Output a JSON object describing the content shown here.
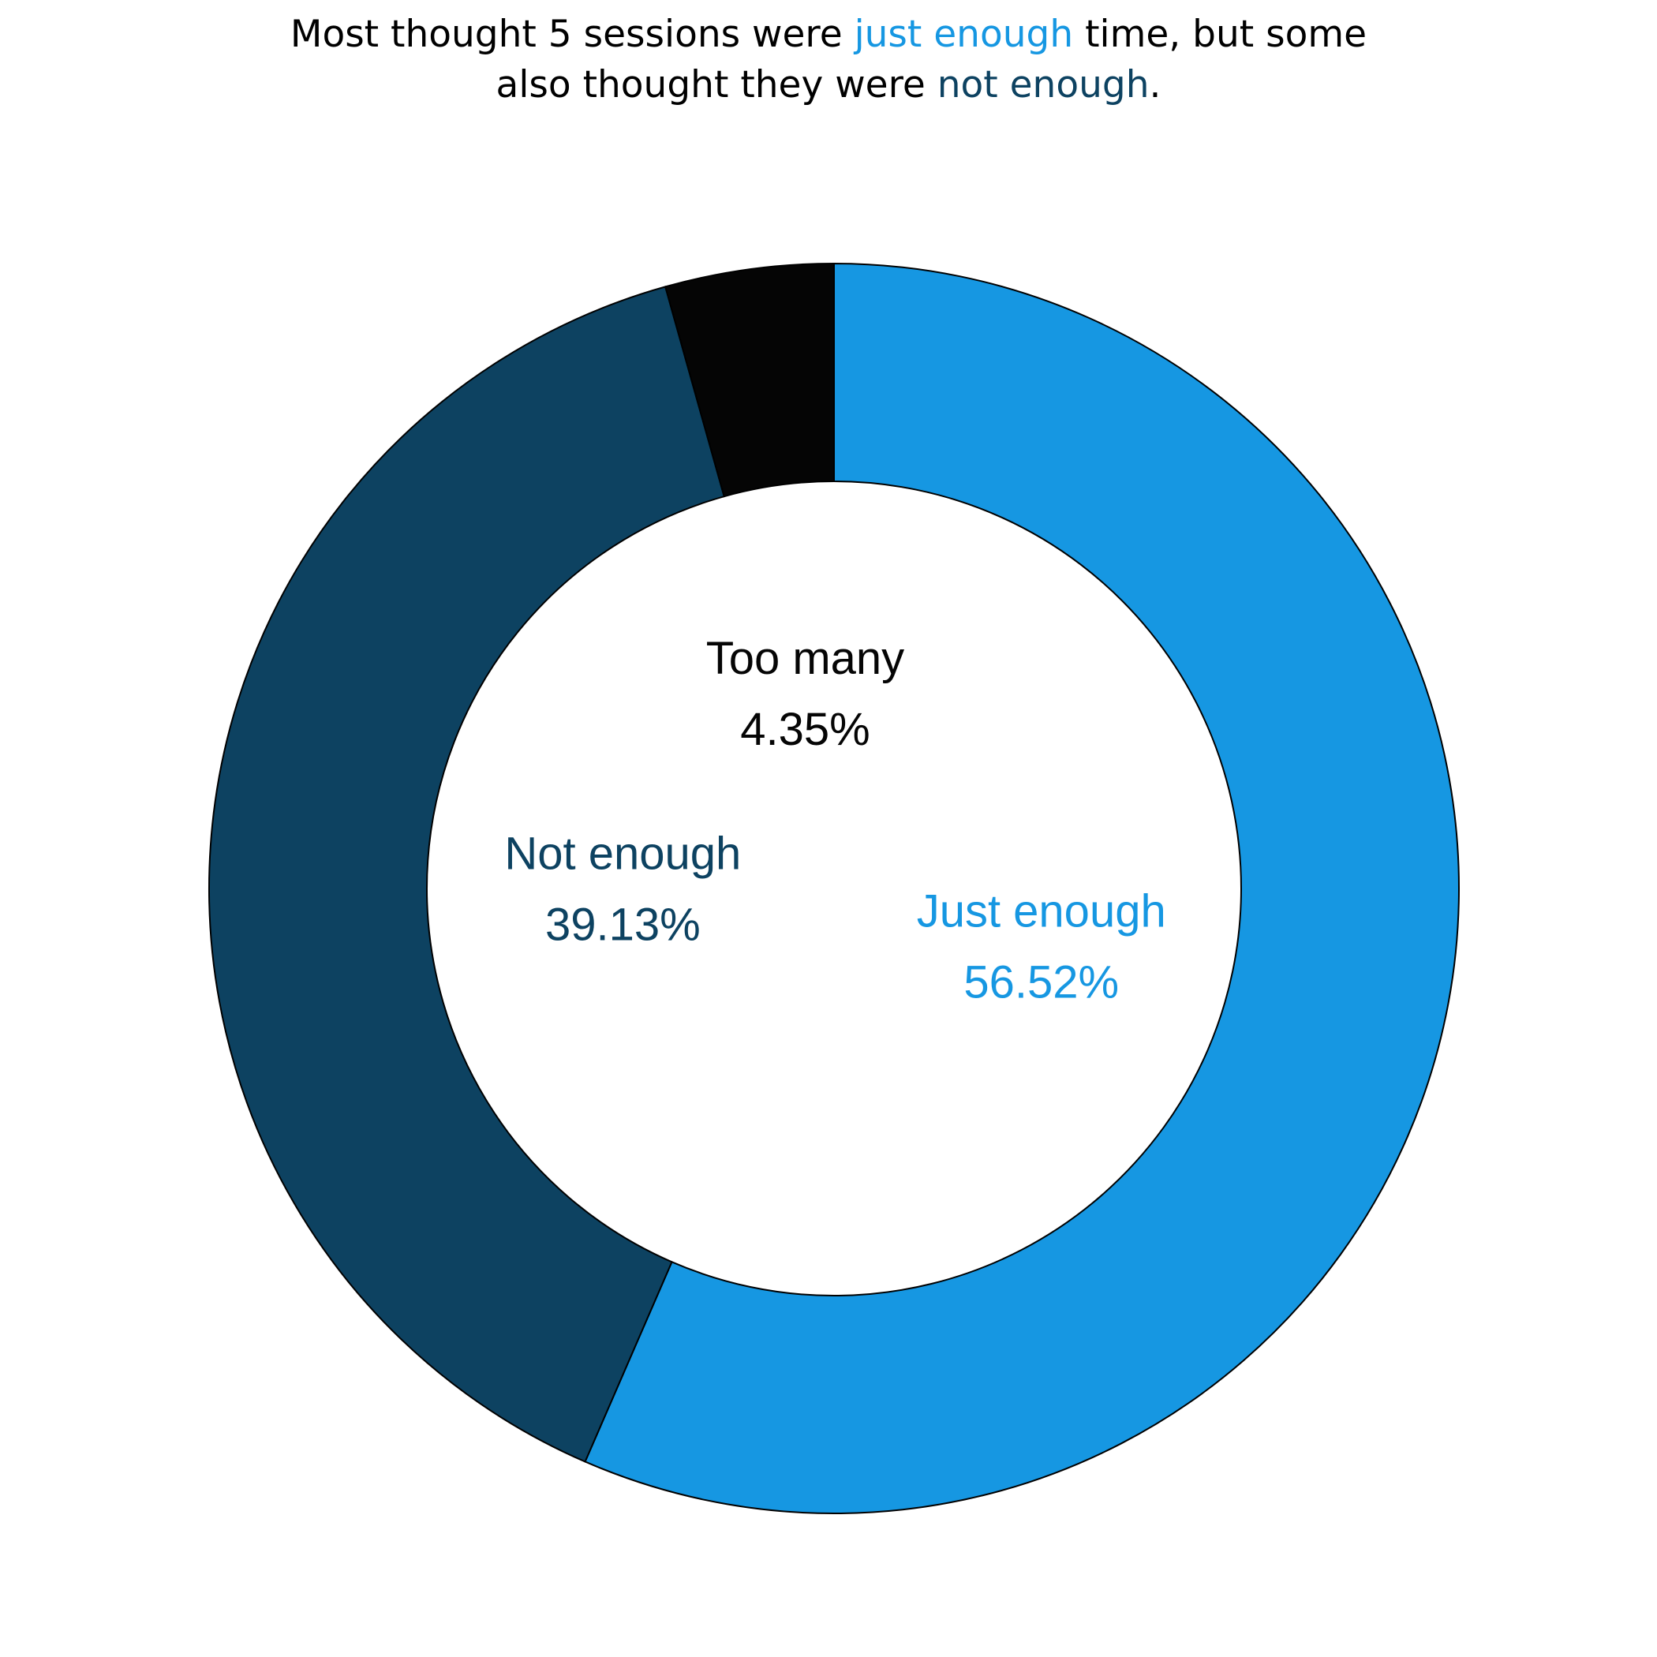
{
  "title": {
    "line1": {
      "before": "Most thought 5 sessions were ",
      "highlight": "just enough",
      "after": " time, but some"
    },
    "line2": {
      "before": "also thought they were ",
      "highlight": "not enough",
      "after": "."
    }
  },
  "colors": {
    "just_enough": "#1697e2",
    "not_enough": "#0d4261",
    "too_many": "#050505",
    "outline": "#000000",
    "background": "#ffffff"
  },
  "chart_data": {
    "type": "pie",
    "style": "donut",
    "direction": "clockwise-from-top",
    "slices": [
      {
        "label": "Just enough",
        "value": 56.52,
        "value_label": "56.52%",
        "color": "#1697e2"
      },
      {
        "label": "Not enough",
        "value": 39.13,
        "value_label": "39.13%",
        "color": "#0d4261"
      },
      {
        "label": "Too many",
        "value": 4.35,
        "value_label": "4.35%",
        "color": "#050505"
      }
    ]
  }
}
